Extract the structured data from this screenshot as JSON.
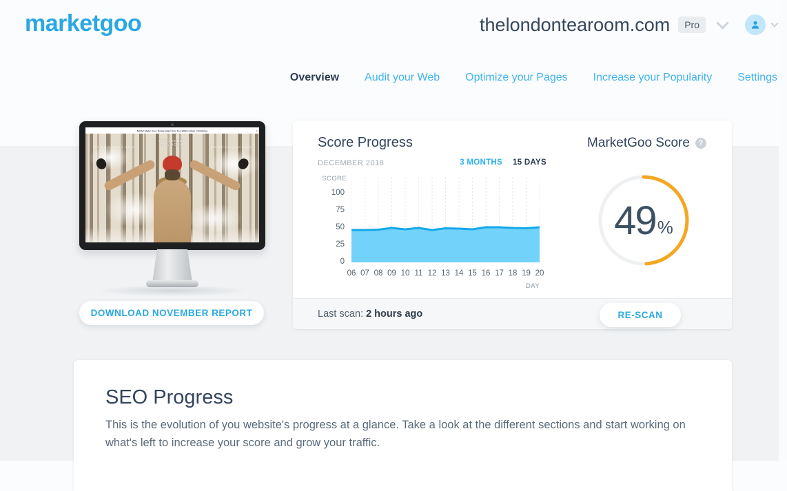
{
  "header": {
    "logo": "marketgoo",
    "domain": "thelondontearoom.com",
    "plan_badge": "Pro"
  },
  "nav": {
    "items": [
      {
        "label": "Overview",
        "active": true
      },
      {
        "label": "Audit your Web",
        "active": false
      },
      {
        "label": "Optimize your Pages",
        "active": false
      },
      {
        "label": "Increase your Popularity",
        "active": false
      },
      {
        "label": "Settings",
        "active": false
      }
    ]
  },
  "monitor": {
    "banner_text": "NEW! Make Your Reservation For Tea With Father Christmas",
    "banner_close": "×",
    "site_name_line1": "THE LONDON",
    "site_name_line2": "TEA ROOM",
    "download_button": "DOWNLOAD NOVEMBER REPORT"
  },
  "score_progress": {
    "title": "Score Progress",
    "period_label": "DECEMBER 2018",
    "range_options": [
      {
        "label": "3 MONTHS",
        "active": false
      },
      {
        "label": "15 DAYS",
        "active": true
      }
    ],
    "last_scan_label": "Last scan:",
    "last_scan_value": "2 hours ago",
    "rescan_button": "RE-SCAN"
  },
  "marketgoo_score": {
    "title": "MarketGoo Score",
    "help_icon": "?",
    "value": 49,
    "unit": "%"
  },
  "seo_progress": {
    "title": "SEO Progress",
    "description": "This is the evolution of you website's progress at a glance. Take a look at the different sections and start working on what's left to increase your score and grow your traffic."
  },
  "chart_data": {
    "type": "area",
    "title": "Score Progress",
    "x": [
      "06",
      "07",
      "08",
      "09",
      "10",
      "11",
      "12",
      "13",
      "14",
      "15",
      "16",
      "17",
      "18",
      "19",
      "20"
    ],
    "values": [
      47,
      47,
      47.5,
      50,
      48,
      50,
      47,
      49.5,
      49,
      48,
      51,
      51,
      50,
      49.5,
      51
    ],
    "xlabel": "DAY",
    "ylabel": "SCORE",
    "yticks": [
      0,
      25,
      50,
      75,
      100
    ],
    "ylim": [
      0,
      123
    ],
    "grid": "vertical-dotted",
    "legend": "none",
    "fill_color": "#66cef8",
    "line_color": "#15a8e9",
    "grid_color": "#d9dde2"
  },
  "colors": {
    "brand_blue": "#29a8e3",
    "nav_blue": "#3fb3f1",
    "dark_navy": "#33445c",
    "gauge_orange": "#f5a623",
    "gauge_track": "#eef0f2",
    "band_background": "#f0f2f4"
  }
}
